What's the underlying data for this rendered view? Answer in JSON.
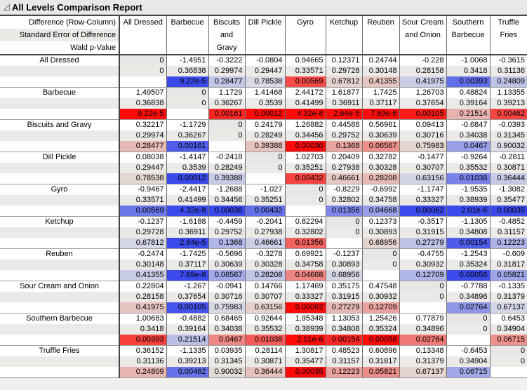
{
  "title": "All Levels Comparison Report",
  "icons": {
    "disclosure": "open-triangle"
  },
  "header": {
    "corner_lines": [
      "Difference (Row-Column)",
      "Standard Error of Difference",
      "Wald p-Value"
    ],
    "columns": [
      "All Dressed",
      "Barbecue",
      "Biscuits and Gravy",
      "Dill Pickle",
      "Gyro",
      "Ketchup",
      "Reuben",
      "Sour Cream and Onion",
      "Southern Barbecue",
      "Truffle Fries"
    ]
  },
  "colors": {
    "significant_positive_full": "#ff0c0a",
    "positive_neutral": "#e2ded9",
    "significant_negative_full": "#3a4aeb",
    "negative_neutral": "#dddee5",
    "se_row_bg": "#ebeae7",
    "diagonal_bg": "#e8e7e5",
    "title_bg": "#e9e8e6"
  },
  "rows": [
    {
      "label": "All Dressed",
      "diff": [
        "0",
        "-1.4951",
        "-0.3222",
        "-0.0804",
        "0.94665",
        "0.12371",
        "0.24744",
        "-0.228",
        "-1.0068",
        "-0.3615"
      ],
      "se": [
        "0",
        "0.36838",
        "0.29974",
        "0.29447",
        "0.33571",
        "0.29728",
        "0.30148",
        "0.28158",
        "0.3418",
        "0.31136"
      ],
      "p": [
        "",
        "9.22e-5",
        "0.28477",
        "0.78538",
        "0.00569",
        "0.67812",
        "0.41355",
        "0.41975",
        "0.00393",
        "0.24809"
      ]
    },
    {
      "label": "Barbecue",
      "diff": [
        "1.49507",
        "0",
        "1.1729",
        "1.41468",
        "2.44172",
        "1.61877",
        "1.7425",
        "1.26703",
        "0.48824",
        "1.13355"
      ],
      "se": [
        "0.36838",
        "0",
        "0.36267",
        "0.3539",
        "0.41499",
        "0.36911",
        "0.37117",
        "0.37654",
        "0.39164",
        "0.39213"
      ],
      "p": [
        "9.22e-5",
        "",
        "0.00161",
        "0.00012",
        "4.32e-8",
        "2.64e-5",
        "7.69e-6",
        "0.00105",
        "0.21514",
        "0.00462"
      ]
    },
    {
      "label": "Biscuits and Gravy",
      "diff": [
        "0.32217",
        "-1.1729",
        "0",
        "0.24179",
        "1.26882",
        "0.44588",
        "0.56961",
        "0.09413",
        "-0.6847",
        "-0.0393"
      ],
      "se": [
        "0.29974",
        "0.36267",
        "0",
        "0.28249",
        "0.34456",
        "0.29752",
        "0.30639",
        "0.30716",
        "0.34038",
        "0.31345"
      ],
      "p": [
        "0.28477",
        "0.00161",
        "",
        "0.39388",
        "0.00036",
        "0.1368",
        "0.06567",
        "0.75983",
        "0.0467",
        "0.90032"
      ]
    },
    {
      "label": "Dill Pickle",
      "diff": [
        "0.08038",
        "-1.4147",
        "-0.2418",
        "0",
        "1.02703",
        "0.20409",
        "0.32782",
        "-0.1477",
        "-0.9264",
        "-0.2811"
      ],
      "se": [
        "0.29447",
        "0.3539",
        "0.28249",
        "0",
        "0.35251",
        "0.27938",
        "0.30328",
        "0.30707",
        "0.35532",
        "0.30871"
      ],
      "p": [
        "0.78538",
        "0.00012",
        "0.39388",
        "",
        "0.00432",
        "0.46661",
        "0.28208",
        "0.63156",
        "0.01038",
        "0.36444"
      ]
    },
    {
      "label": "Gyro",
      "diff": [
        "-0.9467",
        "-2.4417",
        "-1.2688",
        "-1.027",
        "0",
        "-0.8229",
        "-0.6992",
        "-1.1747",
        "-1.9535",
        "-1.3082"
      ],
      "se": [
        "0.33571",
        "0.41499",
        "0.34456",
        "0.35251",
        "0",
        "0.32802",
        "0.34758",
        "0.33327",
        "0.38939",
        "0.35477"
      ],
      "p": [
        "0.00569",
        "4.32e-8",
        "0.00036",
        "0.00432",
        "",
        "0.01356",
        "0.04668",
        "0.00062",
        "2.01e-6",
        "0.00035"
      ]
    },
    {
      "label": "Ketchup",
      "diff": [
        "-0.1237",
        "-1.6188",
        "-0.4459",
        "-0.2041",
        "0.82294",
        "0",
        "0.12373",
        "-0.3517",
        "-1.1305",
        "-0.4852"
      ],
      "se": [
        "0.29728",
        "0.36911",
        "0.29752",
        "0.27938",
        "0.32802",
        "0",
        "0.30893",
        "0.31915",
        "0.34808",
        "0.31157"
      ],
      "p": [
        "0.67812",
        "2.64e-5",
        "0.1368",
        "0.46661",
        "0.01356",
        "",
        "0.68956",
        "0.27279",
        "0.00154",
        "0.12223"
      ]
    },
    {
      "label": "Reuben",
      "diff": [
        "-0.2474",
        "-1.7425",
        "-0.5696",
        "-0.3278",
        "0.69921",
        "-0.1237",
        "0",
        "-0.4755",
        "-1.2543",
        "-0.609"
      ],
      "se": [
        "0.30148",
        "0.37117",
        "0.30639",
        "0.30328",
        "0.34758",
        "0.30893",
        "0",
        "0.30932",
        "0.35324",
        "0.31817"
      ],
      "p": [
        "0.41355",
        "7.69e-6",
        "0.06567",
        "0.28208",
        "0.04668",
        "0.68956",
        "",
        "0.12709",
        "0.00056",
        "0.05821"
      ]
    },
    {
      "label": "Sour Cream and Onion",
      "diff": [
        "0.22804",
        "-1.267",
        "-0.0941",
        "0.14766",
        "1.17469",
        "0.35175",
        "0.47548",
        "0",
        "-0.7788",
        "-0.1335"
      ],
      "se": [
        "0.28158",
        "0.37654",
        "0.30716",
        "0.30707",
        "0.33327",
        "0.31915",
        "0.30932",
        "0",
        "0.34896",
        "0.31379"
      ],
      "p": [
        "0.41975",
        "0.00105",
        "0.75983",
        "0.63156",
        "0.00062",
        "0.27279",
        "0.12709",
        "",
        "0.02764",
        "0.67137"
      ]
    },
    {
      "label": "Southern Barbecue",
      "diff": [
        "1.00683",
        "-0.4882",
        "0.68465",
        "0.92644",
        "1.95348",
        "1.13053",
        "1.25426",
        "0.77879",
        "0",
        "0.6453"
      ],
      "se": [
        "0.3418",
        "0.39164",
        "0.34038",
        "0.35532",
        "0.38939",
        "0.34808",
        "0.35324",
        "0.34896",
        "0",
        "0.34904"
      ],
      "p": [
        "0.00393",
        "0.21514",
        "0.0467",
        "0.01038",
        "2.01e-6",
        "0.00154",
        "0.00056",
        "0.02764",
        "",
        "0.06715"
      ]
    },
    {
      "label": "Truffle Fries",
      "diff": [
        "0.36152",
        "-1.1335",
        "0.03935",
        "0.28114",
        "1.30817",
        "0.48523",
        "0.60896",
        "0.13348",
        "-0.6453",
        "0"
      ],
      "se": [
        "0.31136",
        "0.39213",
        "0.31345",
        "0.30871",
        "0.35477",
        "0.31157",
        "0.31817",
        "0.31379",
        "0.34904",
        "0"
      ],
      "p": [
        "0.24809",
        "0.00462",
        "0.90032",
        "0.36444",
        "0.00035",
        "0.12223",
        "0.05821",
        "0.67137",
        "0.06715",
        ""
      ]
    }
  ]
}
